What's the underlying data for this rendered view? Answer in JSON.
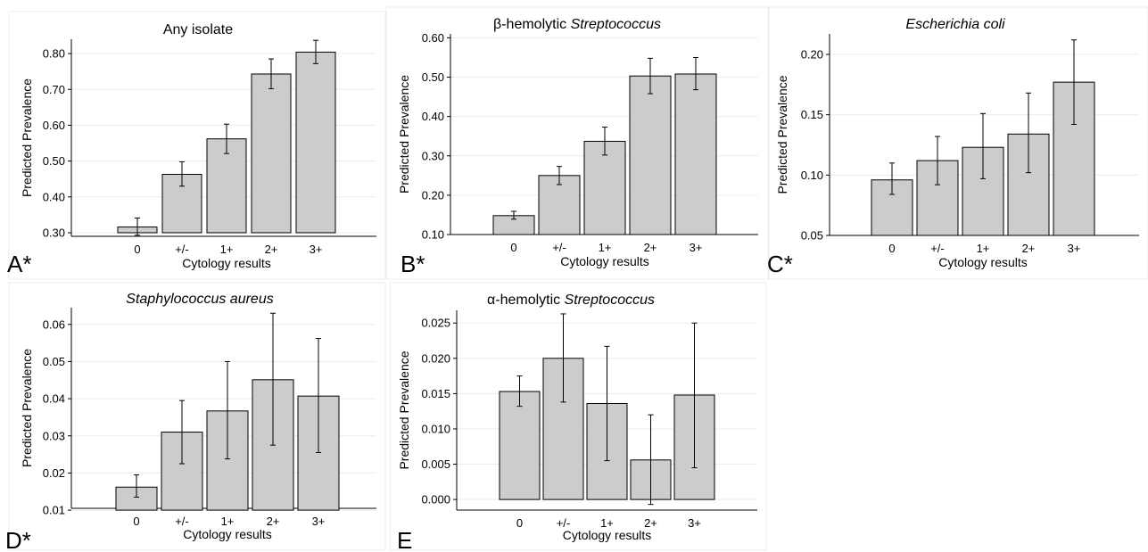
{
  "chart_data": [
    {
      "type": "bar",
      "panel": "A*",
      "title": "Any isolate",
      "title_italic_part": "",
      "xlabel": "Cytology results",
      "ylabel": "Predicted Prevalence",
      "categories": [
        "0",
        "+/-",
        "1+",
        "2+",
        "3+"
      ],
      "values": [
        0.316,
        0.463,
        0.562,
        0.743,
        0.804
      ],
      "error_low": [
        0.293,
        0.43,
        0.521,
        0.702,
        0.772
      ],
      "error_high": [
        0.341,
        0.498,
        0.603,
        0.785,
        0.837
      ],
      "ylim": [
        0.29,
        0.84
      ],
      "yticks": [
        0.3,
        0.4,
        0.5,
        0.6,
        0.7,
        0.8
      ],
      "ytick_labels": [
        "0.30",
        "0.40",
        "0.50",
        "0.60",
        "0.70",
        "0.80"
      ],
      "grid": true
    },
    {
      "type": "bar",
      "panel": "B*",
      "title": "β-hemolytic ",
      "title_italic_part": "Streptococcus",
      "xlabel": "Cytology results",
      "ylabel": "Predicted Prevalence",
      "categories": [
        "0",
        "+/-",
        "1+",
        "2+",
        "3+"
      ],
      "values": [
        0.148,
        0.25,
        0.337,
        0.503,
        0.508
      ],
      "error_low": [
        0.139,
        0.227,
        0.302,
        0.458,
        0.468
      ],
      "error_high": [
        0.159,
        0.273,
        0.373,
        0.548,
        0.55
      ],
      "ylim": [
        0.1,
        0.61
      ],
      "yticks": [
        0.1,
        0.2,
        0.3,
        0.4,
        0.5,
        0.6
      ],
      "ytick_labels": [
        "0.10",
        "0.20",
        "0.30",
        "0.40",
        "0.50",
        "0.60"
      ],
      "grid": true
    },
    {
      "type": "bar",
      "panel": "C*",
      "title": "",
      "title_italic_part": "Escherichia coli",
      "xlabel": "Cytology results",
      "ylabel": "Predicted Prevalence",
      "categories": [
        "0",
        "+/-",
        "1+",
        "2+",
        "3+"
      ],
      "values": [
        0.096,
        0.112,
        0.123,
        0.134,
        0.177
      ],
      "error_low": [
        0.084,
        0.092,
        0.097,
        0.102,
        0.142
      ],
      "error_high": [
        0.11,
        0.132,
        0.151,
        0.168,
        0.212
      ],
      "ylim": [
        0.05,
        0.217
      ],
      "yticks": [
        0.05,
        0.1,
        0.15,
        0.2
      ],
      "ytick_labels": [
        "0.05",
        "0.10",
        "0.15",
        "0.20"
      ],
      "grid": true
    },
    {
      "type": "bar",
      "panel": "D*",
      "title": "",
      "title_italic_part": "Staphylococcus aureus",
      "xlabel": "Cytology results",
      "ylabel": "Predicted Prevalence",
      "categories": [
        "0",
        "+/-",
        "1+",
        "2+",
        "3+"
      ],
      "values": [
        0.0162,
        0.031,
        0.0367,
        0.0451,
        0.0407
      ],
      "error_low": [
        0.0135,
        0.0225,
        0.0238,
        0.0275,
        0.0255
      ],
      "error_high": [
        0.0195,
        0.0395,
        0.05,
        0.063,
        0.0562
      ],
      "ylim": [
        0.0105,
        0.0645
      ],
      "yticks": [
        0.01,
        0.02,
        0.03,
        0.04,
        0.05,
        0.06
      ],
      "ytick_labels": [
        "0.01",
        "0.02",
        "0.03",
        "0.04",
        "0.05",
        "0.06"
      ],
      "grid": true
    },
    {
      "type": "bar",
      "panel": "E",
      "title": "α-hemolytic ",
      "title_italic_part": "Streptococcus",
      "xlabel": "Cytology results",
      "ylabel": "Predicted Prevalence",
      "categories": [
        "0",
        "+/-",
        "1+",
        "2+",
        "3+"
      ],
      "values": [
        0.0153,
        0.02,
        0.0136,
        0.0056,
        0.0148
      ],
      "error_low": [
        0.0132,
        0.0138,
        0.0055,
        -0.0007,
        0.0045
      ],
      "error_high": [
        0.0175,
        0.0263,
        0.0217,
        0.012,
        0.025
      ],
      "ylim": [
        -0.0015,
        0.0268
      ],
      "yticks": [
        0.0,
        0.005,
        0.01,
        0.015,
        0.02,
        0.025
      ],
      "ytick_labels": [
        "0.000",
        "0.005",
        "0.010",
        "0.015",
        "0.020",
        "0.025"
      ],
      "grid": true
    }
  ]
}
